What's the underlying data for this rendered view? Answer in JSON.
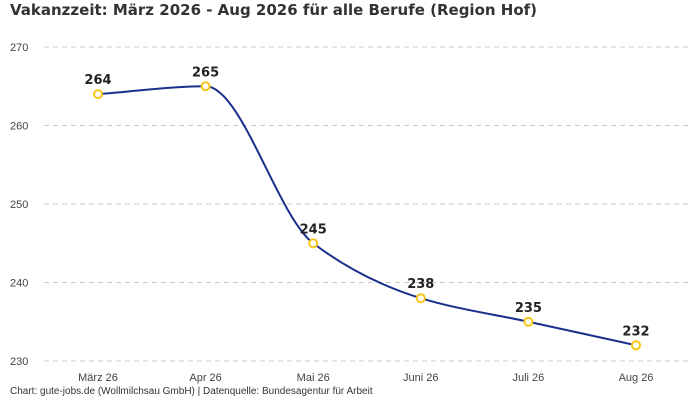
{
  "chart_data": {
    "type": "line",
    "title": "Vakanzzeit: März 2026 - Aug 2026 für alle Berufe (Region Hof)",
    "categories": [
      "März 26",
      "Apr 26",
      "Mai 26",
      "Juni 26",
      "Juli 26",
      "Aug 26"
    ],
    "values": [
      264,
      265,
      245,
      238,
      235,
      232
    ],
    "ylim": [
      230,
      270
    ],
    "yticks": [
      230,
      240,
      250,
      260,
      270
    ],
    "xlabel": "",
    "ylabel": "",
    "grid": true,
    "line_color": "#1a2e8c",
    "marker_color": "#f5c518",
    "data_labels": true
  },
  "footer": "Chart: gute-jobs.de (Wollmilchsau GmbH) | Datenquelle: Bundesagentur für Arbeit"
}
